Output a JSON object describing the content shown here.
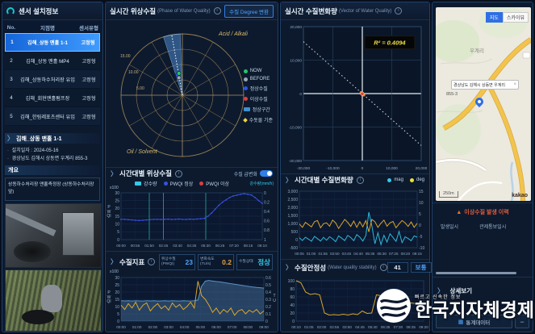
{
  "ui": {
    "chevron": "〉",
    "bullet": "·",
    "info": "i",
    "close": "×",
    "warn": "▲",
    "stats_icon": "▦",
    "minus": "−"
  },
  "left_panel": {
    "title": "센서 설치정보",
    "table": {
      "headers": [
        "No.",
        "지점명",
        "센서유형"
      ],
      "rows": [
        [
          "1",
          "김해_상동 맨홀 1-1",
          "고정형"
        ],
        [
          "2",
          "김해_상동 맨홀 MP4",
          "고정형"
        ],
        [
          "3",
          "김해_상동하수처리장 유입",
          "고정형"
        ],
        [
          "4",
          "김해_회현맨홀펌프장",
          "고정형"
        ],
        [
          "5",
          "김해_한림레포츠센터 유입",
          "고정형"
        ]
      ],
      "selected_index": 0
    },
    "detail": {
      "title": "김해_상동 맨홀 1-1",
      "install": "설치일자 : 2024-05-16",
      "address": "경상남도 김해시 상동면 우계리 855-3",
      "overview_label": "개요",
      "overview": "상동하수처리장 맨홀측정장 (상동하수처리장 앞)"
    }
  },
  "phase_panel": {
    "title": "실시간 위상수질",
    "title_en": "(Phase of Water Quality)",
    "degree_btn": "수질 Degree 변환",
    "hourly": {
      "title": "시간대별 위상수질",
      "toggle": "수질 급변화"
    },
    "indicators": {
      "title": "수질지표",
      "items": [
        {
          "label": "위상수질",
          "sub": "(PWQI)",
          "value": "23",
          "color": "#4da3ff"
        },
        {
          "label": "변화속도",
          "sub": "(TU/s)",
          "value": "0.2",
          "color": "#e8a33d"
        },
        {
          "label": "수질상태",
          "sub": "",
          "value": "정상",
          "color": "#35c8e8"
        }
      ]
    }
  },
  "vector_panel": {
    "title": "실시간 수질변화량",
    "title_en": "(Vector of Water Quality)",
    "hourly_title": "시간대별 수질변화량",
    "stability": {
      "title": "수질안정성",
      "title_en": "(Water quality stability)",
      "value": "41",
      "status": "보통"
    }
  },
  "map_panel": {
    "btn_map": "지도",
    "btn_sky": "스카이뷰",
    "place": "우계리",
    "info": "경상남도 김해시 상동면 우계리",
    "lot": "855-3",
    "scale": "250m",
    "attribution": "kakao",
    "history": {
      "title": "이상수질 발생 이력",
      "col1": "발생일시",
      "col2": "관제통보일시"
    },
    "detail_label": "상세보기",
    "stats_btn": "통계데이터"
  },
  "watermark": {
    "line1": "빠르고 신속한 정보",
    "line2": "한국지자체경제"
  },
  "chart_data": [
    {
      "id": "phase_polar",
      "type": "polar",
      "axis_top": "Acid / Alkali",
      "axis_bottom": "Oil / Solvent",
      "radial_ticks": [
        "15.00",
        "10.00",
        "5.00"
      ],
      "wedge": {
        "angle": 100,
        "width": 16
      },
      "markers": [
        {
          "name": "정상수질",
          "color": "#2956e8",
          "angle": 104,
          "r": 0.34
        },
        {
          "name": "BEFORE",
          "color": "#9aa7b4",
          "angle": 101,
          "r": 0.29
        },
        {
          "name": "NOW",
          "color": "#27c46a",
          "angle": 99,
          "r": 0.36
        }
      ],
      "legend": [
        {
          "label": "NOW",
          "color": "#27c46a",
          "shape": "circle"
        },
        {
          "label": "BEFORE",
          "color": "#9aa7b4",
          "shape": "circle"
        },
        {
          "label": "정상수질",
          "color": "#2956e8",
          "shape": "circle"
        },
        {
          "label": "이상수질",
          "color": "#e03c3c",
          "shape": "circle"
        },
        {
          "label": "정상구간",
          "color": "#3f8fd4",
          "shape": "square"
        },
        {
          "label": "수돗물 기준",
          "color": "#f0d53c",
          "shape": "diamond"
        }
      ]
    },
    {
      "id": "hourly_phase",
      "type": "axis",
      "y_note": "x100",
      "ylabel": "PWQI",
      "y2_note": "강수량(mm/h)",
      "x_ticks": [
        "00:00",
        "00:55",
        "01:50",
        "02:45",
        "03:40",
        "04:35",
        "05:30",
        "06:25",
        "07:20",
        "08:15",
        "09:10"
      ],
      "y": {
        "top": 30,
        "bottom": 0,
        "ticks": [
          "30",
          "25",
          "20",
          "15",
          "10",
          "5",
          "0"
        ]
      },
      "y2": {
        "top": 0,
        "bottom": 1,
        "ticks": [
          "0",
          "0.2",
          "0.4",
          "0.6",
          "0.8",
          "1"
        ]
      },
      "event_lines": [
        "01:50",
        "02:45",
        "05:30"
      ],
      "legend": [
        {
          "label": "강수량",
          "color": "#35c8e8",
          "shape": "square"
        },
        {
          "label": "PWQI 정상",
          "color": "#3a50e0",
          "shape": "circle"
        },
        {
          "label": "PWQI 이상",
          "color": "#e03c3c",
          "shape": "circle"
        }
      ],
      "series": [
        {
          "name": "PWQI",
          "color": "#3a50e0",
          "dots": true,
          "values": [
            13,
            13,
            12.8,
            12.6,
            12.4,
            12.3,
            12.4,
            12.6,
            12.8,
            13,
            13,
            12.9,
            13,
            13.1,
            12.9,
            13,
            13.2,
            13,
            12.9,
            13.1,
            13,
            13.2,
            13.4,
            13.6,
            15,
            17,
            19.5,
            22,
            24,
            25.5,
            27,
            28,
            28.5,
            29,
            29.4,
            29,
            28.6,
            27,
            25,
            23.2
          ]
        }
      ]
    },
    {
      "id": "indicator_trend",
      "type": "axis",
      "y_note": "x100",
      "ylabel": "PWQI",
      "y2label": "TU",
      "x_ticks": [
        "00:00",
        "01:00",
        "02:00",
        "03:00",
        "04:00",
        "05:00",
        "06:00",
        "07:00",
        "08:00",
        "09:00"
      ],
      "y": {
        "top": 30,
        "bottom": 0,
        "ticks": [
          "30",
          "25",
          "20",
          "15",
          "10",
          "5",
          "0"
        ]
      },
      "y2": {
        "top": 0.6,
        "bottom": 0,
        "ticks": [
          "0.6",
          "0.5",
          "0.4",
          "0.3",
          "0.2",
          "0.1",
          "0"
        ]
      },
      "series": [
        {
          "name": "PWQI",
          "color": "#5d93c4",
          "fill": true,
          "values": [
            14,
            13.9,
            14,
            13.8,
            14,
            13.9,
            13.8,
            14,
            13.9,
            14,
            13.8,
            13.9,
            14,
            13.8,
            14,
            13.9,
            13.8,
            14,
            13.9,
            13.8,
            14,
            14.5,
            24,
            27.5,
            28,
            27.6,
            27.2,
            27,
            26.6,
            26.2,
            25.8,
            25.4,
            25,
            24.6,
            24.2,
            23.8,
            23.5,
            23.2,
            23,
            22.7
          ]
        },
        {
          "name": "TU",
          "color": "#d9a62e",
          "axis": "y2",
          "values": [
            0.22,
            0.16,
            0.24,
            0.18,
            0.26,
            0.15,
            0.22,
            0.25,
            0.14,
            0.2,
            0.24,
            0.17,
            0.21,
            0.15,
            0.25,
            0.19,
            0.23,
            0.16,
            0.2,
            0.26,
            0.18,
            0.55,
            0.35,
            0.3,
            0.22,
            0.12,
            0.18,
            0.1,
            0.16,
            0.12,
            0.18,
            0.08,
            0.14,
            0.16,
            0.1,
            0.15,
            0.12,
            0.16,
            0.1,
            0.14
          ]
        }
      ]
    },
    {
      "id": "vector_scatter",
      "type": "scatter",
      "r2_label": "R² = 0.4094",
      "x_ticks": [
        "-20,000",
        "-10,000",
        "0",
        "10,000",
        "20,000"
      ],
      "y_ticks": [
        "20,000",
        "10,000",
        "0",
        "-10,000",
        "-20,000"
      ],
      "xlim": [
        -20000,
        20000
      ],
      "ylim": [
        -20000,
        20000
      ],
      "trend": [
        [
          -20000,
          15500
        ],
        [
          20000,
          -15500
        ]
      ],
      "points": [
        [
          200,
          -250
        ],
        [
          -150,
          120
        ],
        [
          420,
          -480
        ],
        [
          -320,
          260
        ],
        [
          90,
          -70
        ],
        [
          610,
          -430
        ],
        [
          -470,
          360
        ],
        [
          260,
          -190
        ]
      ],
      "highlight_point": [
        0,
        -60
      ]
    },
    {
      "id": "hourly_vector",
      "type": "axis",
      "x_ticks": [
        "00:05",
        "01:00",
        "01:55",
        "02:50",
        "03:45",
        "04:40",
        "05:35",
        "06:30",
        "07:25",
        "08:20",
        "09:15"
      ],
      "y": {
        "top": 3000,
        "bottom": -500,
        "ticks": [
          "3,000",
          "2,500",
          "2,000",
          "1,500",
          "1,000",
          "500",
          "0",
          "-500"
        ]
      },
      "y2": {
        "top": 15,
        "bottom": -10,
        "ticks": [
          "15",
          "10",
          "5",
          "0",
          "-5",
          "-10"
        ]
      },
      "legend": [
        {
          "label": "mag",
          "color": "#35c8e8",
          "shape": "circle"
        },
        {
          "label": "deg",
          "color": "#e8e23a",
          "shape": "circle"
        }
      ],
      "series": [
        {
          "name": "mag",
          "color": "#2fb8d8",
          "values": [
            120,
            -60,
            150,
            30,
            -100,
            200,
            60,
            -90,
            140,
            -40,
            180,
            50,
            -130,
            230,
            90,
            -60,
            260,
            130,
            -70,
            310,
            160,
            -90,
            250,
            1700,
            850,
            -260,
            420,
            -310,
            270,
            -150,
            360,
            130,
            -110,
            510,
            -190,
            170,
            70,
            -70,
            230,
            150
          ]
        },
        {
          "name": "deg",
          "color": "#d9a62e",
          "axis": "y2",
          "values": [
            0.5,
            -1,
            1.2,
            0.2,
            -0.8,
            1.5,
            2,
            -1.2,
            0.6,
            1,
            -0.5,
            2.2,
            1,
            -1.5,
            0.5,
            2.5,
            1.2,
            -0.6,
            1.8,
            -1,
            1.5,
            -0.8,
            2,
            -3,
            2.5,
            1.5,
            -1,
            0.8,
            2.2,
            -0.5,
            1,
            1.6,
            -1.2,
            0.5,
            2,
            1,
            -0.6,
            1.4,
            -1,
            0.8
          ]
        }
      ]
    },
    {
      "id": "stability",
      "type": "axis",
      "x_ticks": [
        "00:10",
        "01:05",
        "02:00",
        "02:55",
        "03:50",
        "04:45",
        "05:40",
        "06:35",
        "07:30",
        "08:25",
        "09:20"
      ],
      "y": {
        "top": 100,
        "bottom": 0,
        "ticks": [
          "100",
          "80",
          "60",
          "40",
          "20",
          "0"
        ]
      },
      "series": [
        {
          "name": "stability",
          "color": "#d9a62e",
          "values": [
            100,
            95,
            72,
            66,
            68,
            65,
            20,
            15,
            16,
            15,
            17,
            15,
            18,
            16,
            25,
            19,
            20,
            65,
            63,
            58,
            56,
            55,
            48,
            46,
            45,
            44,
            42,
            41
          ]
        }
      ]
    }
  ]
}
